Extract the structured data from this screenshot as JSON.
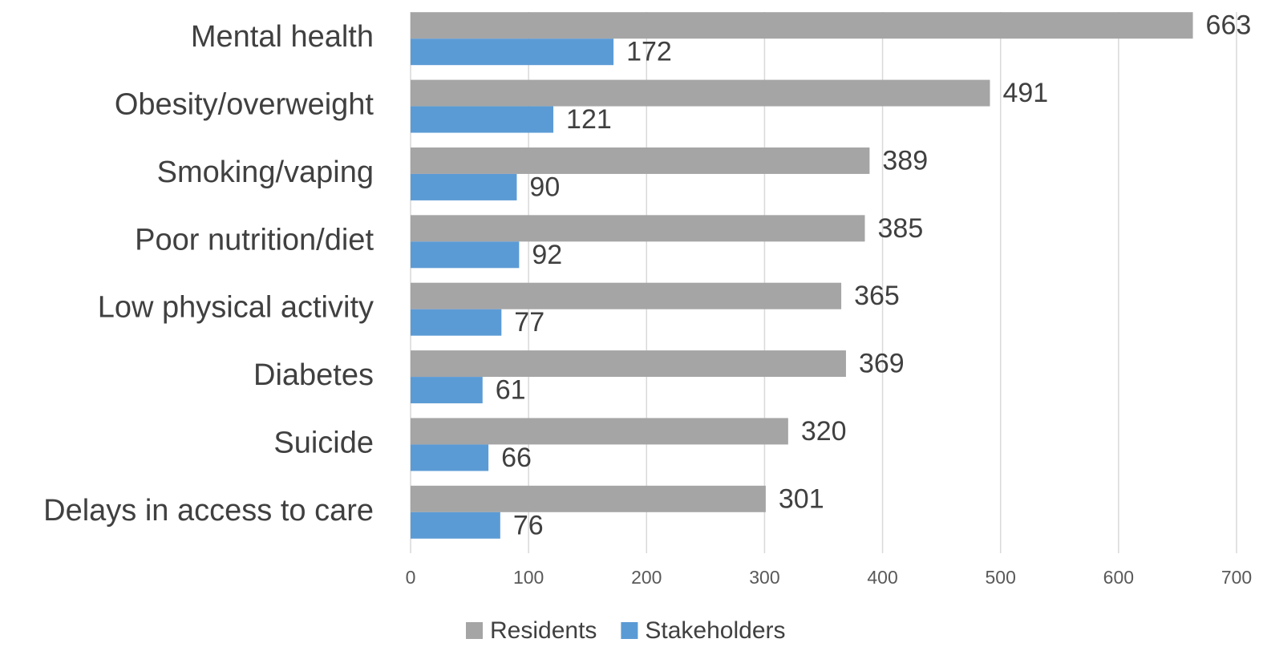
{
  "chart_data": {
    "type": "bar",
    "orientation": "horizontal",
    "categories": [
      "Mental health",
      "Obesity/overweight",
      "Smoking/vaping",
      "Poor nutrition/diet",
      "Low physical activity",
      "Diabetes",
      "Suicide",
      "Delays in access to care"
    ],
    "series": [
      {
        "name": "Residents",
        "color": "#a5a5a5",
        "values": [
          663,
          491,
          389,
          385,
          365,
          369,
          320,
          301
        ]
      },
      {
        "name": "Stakeholders",
        "color": "#5b9bd5",
        "values": [
          172,
          121,
          90,
          92,
          77,
          61,
          66,
          76
        ]
      }
    ],
    "xlim": [
      0,
      700
    ],
    "xticks": [
      0,
      100,
      200,
      300,
      400,
      500,
      600,
      700
    ],
    "grid": true,
    "legend": "bottom"
  }
}
